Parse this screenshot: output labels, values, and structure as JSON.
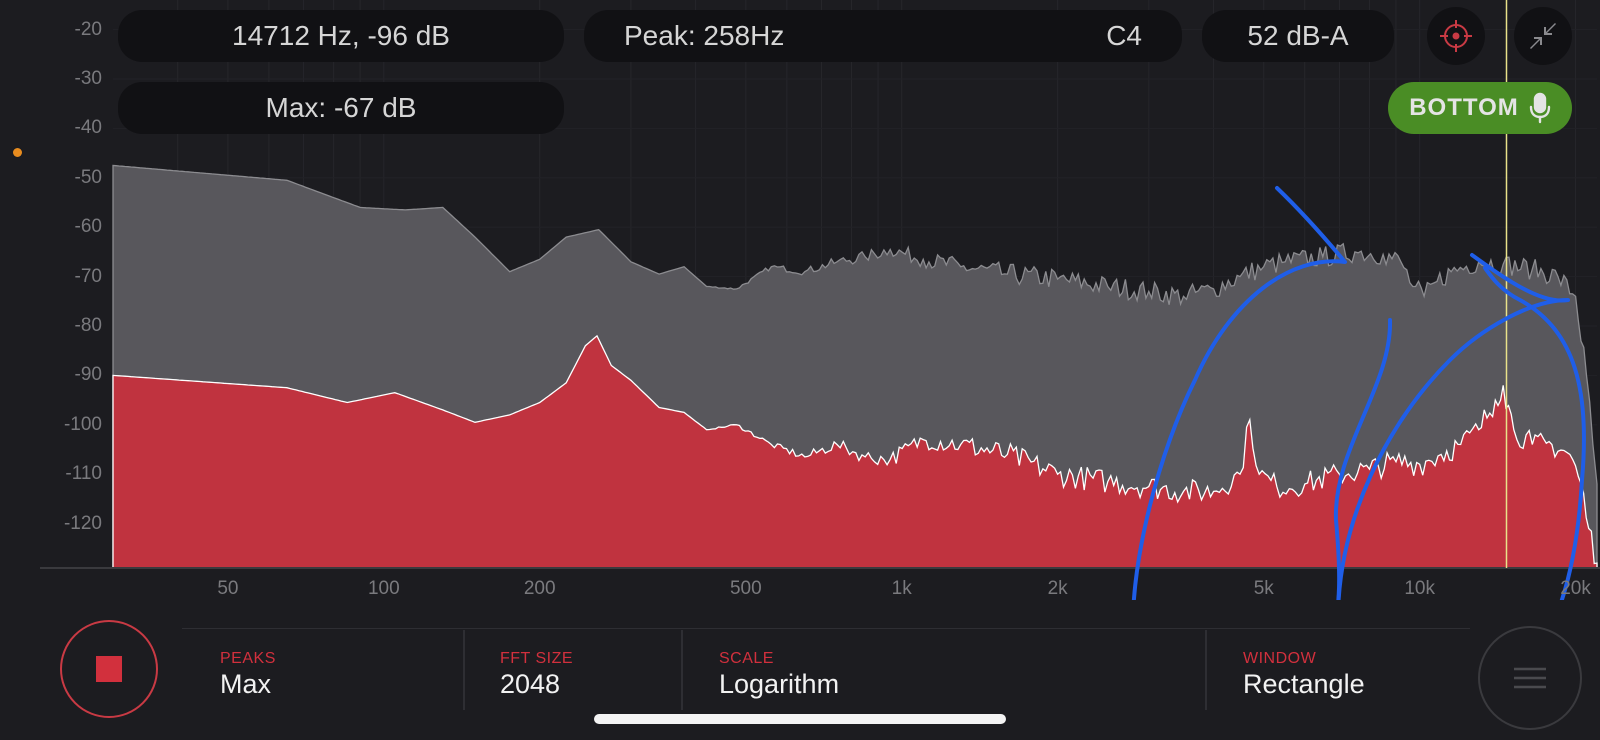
{
  "readouts": {
    "cursor": "14712 Hz, -96 dB",
    "peak": "Peak: 258Hz",
    "note": "C4",
    "level": "52 dB-A",
    "max": "Max: -67 dB"
  },
  "bottom_button": {
    "label": "BOTTOM",
    "icon": "microphone-icon"
  },
  "icons": {
    "target": "crosshair-icon",
    "expand": "collapse-arrows-icon",
    "menu": "hamburger-icon",
    "stop": "stop-icon"
  },
  "colors": {
    "accent": "#d2303d",
    "spectrum_fill": "#c0333f",
    "max_fill": "#58575c",
    "cursor_line": "#e9e28a",
    "bottom_button": "#4a8d25",
    "annotation": "#1f5ee8"
  },
  "settings": [
    {
      "label": "PEAKS",
      "value": "Max"
    },
    {
      "label": "FFT SIZE",
      "value": "2048"
    },
    {
      "label": "SCALE",
      "value": "Logarithm"
    },
    {
      "label": "WINDOW",
      "value": "Rectangle"
    }
  ],
  "chart_data": {
    "type": "area",
    "x_scale": "log",
    "xlim": [
      30,
      22000
    ],
    "ylim": [
      -129,
      -14
    ],
    "x_ticks": [
      {
        "value": 50,
        "label": "50"
      },
      {
        "value": 100,
        "label": "100"
      },
      {
        "value": 200,
        "label": "200"
      },
      {
        "value": 500,
        "label": "500"
      },
      {
        "value": 1000,
        "label": "1k"
      },
      {
        "value": 2000,
        "label": "2k"
      },
      {
        "value": 5000,
        "label": "5k"
      },
      {
        "value": 10000,
        "label": "10k"
      },
      {
        "value": 20000,
        "label": "20k"
      }
    ],
    "y_ticks": [
      -20,
      -30,
      -40,
      -50,
      -60,
      -70,
      -80,
      -90,
      -100,
      -110,
      -120
    ],
    "cursor_hz": 14712,
    "series": [
      {
        "role": "max-hold",
        "points": [
          [
            30,
            -47.5
          ],
          [
            65,
            -50.5
          ],
          [
            90,
            -56
          ],
          [
            110,
            -56.5
          ],
          [
            130,
            -56
          ],
          [
            150,
            -62
          ],
          [
            175,
            -69
          ],
          [
            200,
            -66.5
          ],
          [
            225,
            -62
          ],
          [
            260,
            -60.5
          ],
          [
            300,
            -67
          ],
          [
            340,
            -69.5
          ],
          [
            380,
            -68
          ],
          [
            420,
            -72
          ],
          [
            480,
            -72.5
          ],
          [
            560,
            -68
          ],
          [
            650,
            -69
          ],
          [
            750,
            -67
          ],
          [
            850,
            -66
          ],
          [
            950,
            -64.5
          ],
          [
            1100,
            -66.5
          ],
          [
            1300,
            -68
          ],
          [
            1600,
            -69.5
          ],
          [
            2000,
            -70.5
          ],
          [
            2500,
            -72
          ],
          [
            3000,
            -73
          ],
          [
            3500,
            -74
          ],
          [
            4000,
            -72.5
          ],
          [
            4500,
            -70
          ],
          [
            5000,
            -68
          ],
          [
            5500,
            -67
          ],
          [
            6500,
            -66
          ],
          [
            7500,
            -65
          ],
          [
            8500,
            -65.5
          ],
          [
            9200,
            -67
          ],
          [
            9700,
            -72
          ],
          [
            10200,
            -74
          ],
          [
            10800,
            -71
          ],
          [
            11500,
            -69
          ],
          [
            13000,
            -67
          ],
          [
            14500,
            -67.5
          ],
          [
            16500,
            -68.5
          ],
          [
            18500,
            -70
          ],
          [
            20000,
            -74
          ],
          [
            21000,
            -90
          ],
          [
            21600,
            -104
          ],
          [
            22000,
            -112
          ]
        ]
      },
      {
        "role": "spectrum",
        "points": [
          [
            30,
            -90
          ],
          [
            65,
            -92.5
          ],
          [
            85,
            -95.5
          ],
          [
            105,
            -93.5
          ],
          [
            130,
            -97
          ],
          [
            150,
            -99.5
          ],
          [
            175,
            -98
          ],
          [
            200,
            -95.5
          ],
          [
            225,
            -91.5
          ],
          [
            245,
            -84
          ],
          [
            258,
            -82
          ],
          [
            275,
            -88
          ],
          [
            300,
            -91
          ],
          [
            340,
            -96.5
          ],
          [
            380,
            -97.5
          ],
          [
            420,
            -101
          ],
          [
            480,
            -100
          ],
          [
            560,
            -104
          ],
          [
            650,
            -106.5
          ],
          [
            750,
            -104
          ],
          [
            850,
            -106.5
          ],
          [
            950,
            -107
          ],
          [
            1100,
            -103
          ],
          [
            1300,
            -104
          ],
          [
            1600,
            -106
          ],
          [
            2000,
            -110
          ],
          [
            2500,
            -111.5
          ],
          [
            3000,
            -112.5
          ],
          [
            3500,
            -113.5
          ],
          [
            4000,
            -113.5
          ],
          [
            4500,
            -110
          ],
          [
            4700,
            -99
          ],
          [
            4900,
            -110
          ],
          [
            5300,
            -112.5
          ],
          [
            6000,
            -112
          ],
          [
            7000,
            -110
          ],
          [
            8000,
            -109
          ],
          [
            9000,
            -107.5
          ],
          [
            10000,
            -108
          ],
          [
            11000,
            -106
          ],
          [
            12000,
            -104
          ],
          [
            13000,
            -101
          ],
          [
            14000,
            -95
          ],
          [
            14500,
            -92
          ],
          [
            15200,
            -101
          ],
          [
            16500,
            -104
          ],
          [
            18000,
            -104
          ],
          [
            19500,
            -106
          ],
          [
            20500,
            -112
          ],
          [
            21200,
            -121
          ],
          [
            22000,
            -128
          ]
        ]
      }
    ]
  }
}
